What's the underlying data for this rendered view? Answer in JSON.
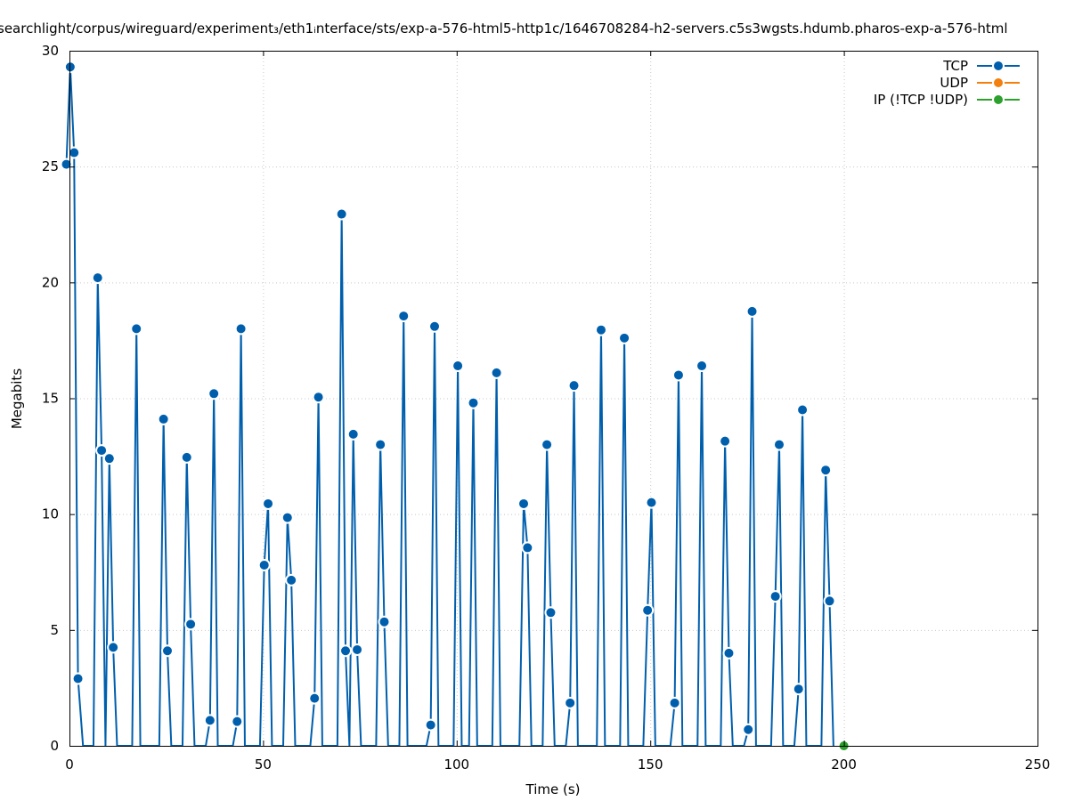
{
  "chart_data": {
    "type": "line",
    "title": "searchlight/corpus/wireguard/experiment₃/eth1ᵢnterface/sts/exp-a-576-html5-http1c/1646708284-h2-servers.c5s3wgsts.hdumb.pharos-exp-a-576-html",
    "xlabel": "Time (s)",
    "ylabel": "Megabits",
    "xlim": [
      0,
      250
    ],
    "ylim": [
      0,
      30
    ],
    "xticks": [
      0,
      50,
      100,
      150,
      200,
      250
    ],
    "yticks": [
      0,
      5,
      10,
      15,
      20,
      25,
      30
    ],
    "grid": true,
    "legend_position": "top-right",
    "series": [
      {
        "name": "TCP",
        "color": "#005fad",
        "marker": "circle",
        "x": [
          -0.8,
          0.2,
          1.2,
          2.2,
          3.5,
          6.2,
          7.3,
          8.3,
          9.3,
          10.3,
          11.3,
          12.3,
          16.2,
          17.3,
          18.3,
          23.2,
          24.3,
          25.3,
          26.3,
          29.2,
          30.3,
          31.3,
          32.3,
          35.2,
          36.3,
          37.3,
          38.3,
          42.2,
          43.3,
          44.3,
          45.3,
          49.2,
          50.3,
          51.3,
          52.3,
          55.2,
          56.3,
          57.3,
          58.3,
          62.2,
          63.3,
          64.3,
          65.3,
          69.2,
          70.3,
          71.3,
          72.3,
          73.3,
          74.3,
          75.3,
          79.2,
          80.3,
          81.3,
          82.3,
          85.2,
          86.3,
          87.3,
          92.2,
          93.3,
          94.3,
          95.3,
          99.2,
          100.3,
          101.3,
          103.2,
          104.3,
          105.3,
          109.2,
          110.3,
          111.3,
          116.2,
          117.3,
          118.3,
          119.3,
          122.2,
          123.3,
          124.3,
          125.3,
          128.2,
          129.3,
          130.3,
          131.3,
          136.2,
          137.3,
          138.3,
          142.2,
          143.3,
          144.3,
          148.2,
          149.3,
          150.3,
          151.3,
          155.2,
          156.3,
          157.3,
          158.3,
          162.2,
          163.3,
          164.3,
          168.2,
          169.3,
          170.3,
          171.3,
          174.2,
          175.3,
          176.3,
          177.3,
          181.2,
          182.3,
          183.3,
          184.3,
          187.2,
          188.3,
          189.3,
          190.3,
          194.2,
          195.3,
          196.3,
          197.3
        ],
        "y": [
          25.1,
          29.3,
          25.6,
          2.9,
          0,
          0,
          20.2,
          12.75,
          0,
          12.4,
          4.25,
          0,
          0,
          18.0,
          0,
          0,
          14.1,
          4.1,
          0,
          0,
          12.45,
          5.25,
          0,
          0,
          1.1,
          15.2,
          0,
          0,
          1.05,
          18.0,
          0,
          0,
          7.8,
          10.45,
          0,
          0,
          9.85,
          7.15,
          0,
          0,
          2.05,
          15.05,
          0,
          0,
          22.95,
          4.1,
          0,
          13.45,
          4.15,
          0,
          0,
          13.0,
          5.35,
          0,
          0,
          18.55,
          0,
          0,
          0.9,
          18.1,
          0,
          0,
          16.4,
          0,
          0,
          14.8,
          0,
          0,
          16.1,
          0,
          0,
          10.45,
          8.55,
          0,
          0,
          13.0,
          5.75,
          0,
          0,
          1.85,
          15.55,
          0,
          0,
          17.95,
          0,
          0,
          17.6,
          0,
          0,
          5.85,
          10.5,
          0,
          0,
          1.85,
          16.0,
          0,
          0,
          16.4,
          0,
          0,
          13.15,
          4.0,
          0,
          0,
          0.7,
          18.75,
          0,
          0,
          6.45,
          13.0,
          0,
          0,
          2.45,
          14.5,
          0,
          0,
          11.9,
          6.25,
          0
        ],
        "markers": [
          true,
          true,
          true,
          true,
          false,
          false,
          true,
          true,
          false,
          true,
          true,
          false,
          false,
          true,
          false,
          false,
          true,
          true,
          false,
          false,
          true,
          true,
          false,
          false,
          true,
          true,
          false,
          false,
          true,
          true,
          false,
          false,
          true,
          true,
          false,
          false,
          true,
          true,
          false,
          false,
          true,
          true,
          false,
          false,
          true,
          true,
          false,
          true,
          true,
          false,
          false,
          true,
          true,
          false,
          false,
          true,
          false,
          false,
          true,
          true,
          false,
          false,
          true,
          false,
          false,
          true,
          false,
          false,
          true,
          false,
          false,
          true,
          true,
          false,
          false,
          true,
          true,
          false,
          false,
          true,
          true,
          false,
          false,
          true,
          false,
          false,
          true,
          false,
          false,
          true,
          true,
          false,
          false,
          true,
          true,
          false,
          false,
          true,
          false,
          false,
          true,
          true,
          false,
          false,
          true,
          true,
          false,
          false,
          true,
          true,
          false,
          false,
          true,
          true,
          false,
          false,
          true,
          true,
          false
        ]
      },
      {
        "name": "UDP",
        "color": "#f37f0e",
        "marker": "circle",
        "x": [],
        "y": [],
        "markers": []
      },
      {
        "name": "IP (!TCP  !UDP)",
        "color": "#2ca02c",
        "marker": "circle",
        "x": [
          200.0
        ],
        "y": [
          0
        ],
        "markers": [
          true
        ]
      }
    ]
  }
}
